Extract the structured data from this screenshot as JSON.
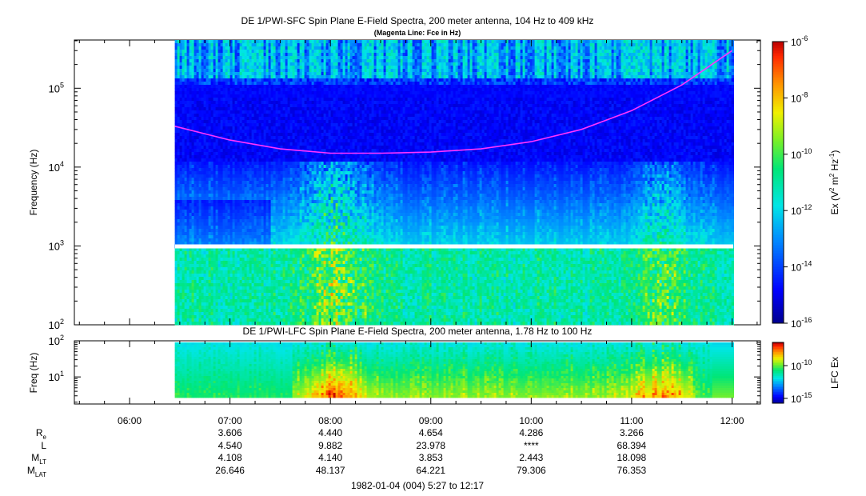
{
  "chart_data": [
    {
      "type": "heatmap",
      "title": "DE 1/PWI-SFC  Spin Plane E-Field Spectra, 200 meter antenna, 104 Hz to 409 kHz",
      "subtitle": "(Magenta Line: Fce in Hz)",
      "ylabel": "Frequency (Hz)",
      "y_scale": "log",
      "y_ticks": [
        {
          "exp": "2",
          "value": 100
        },
        {
          "exp": "3",
          "value": 1000
        },
        {
          "exp": "4",
          "value": 10000
        },
        {
          "exp": "5",
          "value": 100000
        }
      ],
      "ylim": [
        100,
        409000
      ],
      "x_range_hours": [
        5.45,
        12.283
      ],
      "data_start_hour": 6.45,
      "data_end_hour": 12.0,
      "colorbar": {
        "label_pre": "Ex (V",
        "label_post": " Hz",
        "label_close": ")",
        "label_sup_m": "2",
        "label_sup_hz": "-1",
        "label_mid": " m",
        "scale": "log",
        "range": [
          1e-16,
          1e-06
        ],
        "ticks": [
          {
            "base": "10",
            "exp": "-16"
          },
          {
            "base": "10",
            "exp": "-14"
          },
          {
            "base": "10",
            "exp": "-12"
          },
          {
            "base": "10",
            "exp": "-10"
          },
          {
            "base": "10",
            "exp": "-8"
          },
          {
            "base": "10",
            "exp": "-6"
          }
        ]
      },
      "series": [
        {
          "name": "Fce",
          "color": "#ff33ff",
          "x": [
            6.45,
            7.0,
            7.5,
            8.0,
            8.5,
            9.0,
            9.5,
            10.0,
            10.5,
            11.0,
            11.5,
            12.0
          ],
          "y": [
            33000,
            22000,
            17000,
            15000,
            15000,
            15500,
            17000,
            21000,
            30000,
            52000,
            110000,
            300000
          ]
        }
      ]
    },
    {
      "type": "heatmap",
      "title": "DE 1/PWI-LFC  Spin Plane E-Field Spectra, 200 meter antenna, 1.78 Hz to 100 Hz",
      "ylabel": "Freq (Hz)",
      "y_scale": "log",
      "y_ticks": [
        {
          "base": "10",
          "exp": "1",
          "value": 10
        },
        {
          "base": "10",
          "exp": "2",
          "value": 100
        }
      ],
      "ylim": [
        1.78,
        100
      ],
      "colorbar": {
        "label": "LFC Ex",
        "ticks": [
          {
            "base": "10",
            "exp": "-15"
          },
          {
            "base": "10",
            "exp": "-10"
          }
        ]
      }
    }
  ],
  "x_axis": {
    "ticks": [
      "06:00",
      "07:00",
      "08:00",
      "09:00",
      "10:00",
      "11:00",
      "12:00"
    ]
  },
  "ephemeris": {
    "rows": [
      {
        "label": "R",
        "sub": "e",
        "values": [
          "3.606",
          "4.440",
          "4.654",
          "4.286",
          "3.266"
        ]
      },
      {
        "label": "L",
        "sub": "",
        "values": [
          "4.540",
          "9.882",
          "23.978",
          "****",
          "68.394"
        ]
      },
      {
        "label": "M",
        "sub": "LT",
        "values": [
          "4.108",
          "4.140",
          "3.853",
          "2.443",
          "18.098"
        ]
      },
      {
        "label": "M",
        "sub": "LAT",
        "values": [
          "26.646",
          "48.137",
          "64.221",
          "79.306",
          "76.353"
        ]
      }
    ]
  },
  "footer": "1982-01-04 (004) 5:27 to 12:17"
}
